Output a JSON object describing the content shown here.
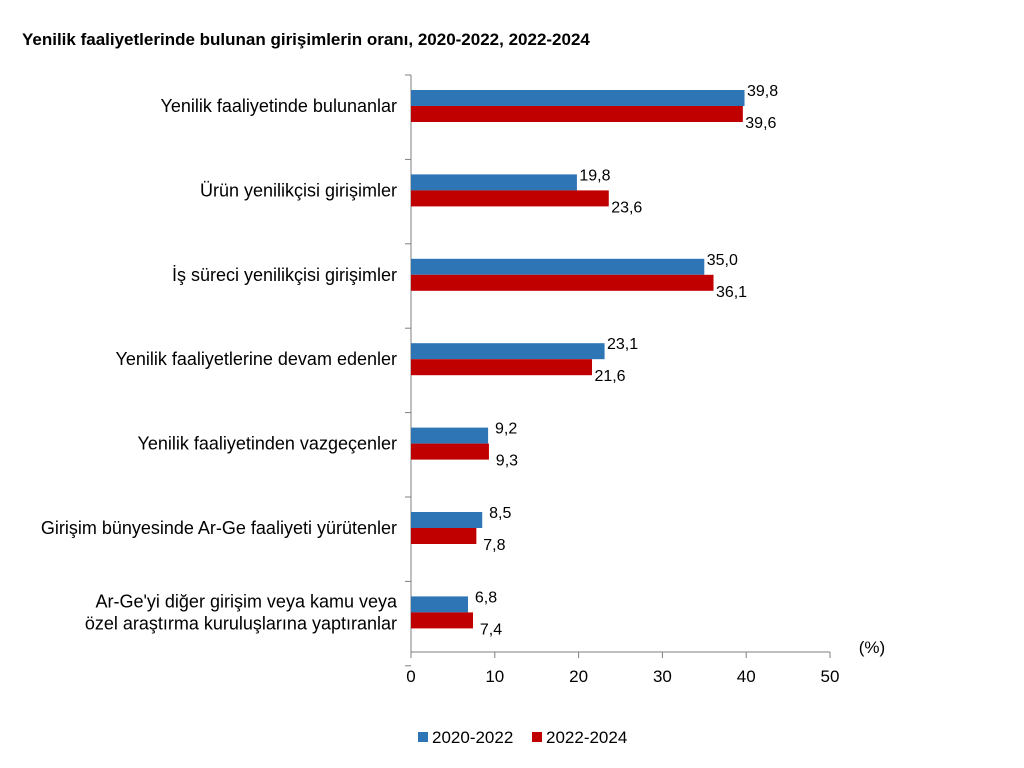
{
  "chart_data": {
    "type": "bar",
    "orientation": "horizontal",
    "title": "Yenilik faaliyetlerinde bulunan girişimlerin oranı, 2020-2022, 2022-2024",
    "unit": "(%)",
    "xlim": [
      0,
      50
    ],
    "ticks": [
      0,
      10,
      20,
      30,
      40,
      50
    ],
    "grid": false,
    "legend_position": "bottom",
    "categories": [
      [
        "Yenilik faaliyetinde bulunanlar"
      ],
      [
        "Ürün yenilikçisi girişimler"
      ],
      [
        "İş süreci yenilikçisi girişimler"
      ],
      [
        "Yenilik faaliyetlerine devam edenler"
      ],
      [
        "Yenilik faaliyetinden vazgeçenler"
      ],
      [
        "Girişim bünyesinde Ar-Ge faaliyeti yürütenler"
      ],
      [
        "Ar-Ge'yi diğer girişim veya kamu veya",
        "özel araştırma kuruluşlarına yaptıranlar"
      ]
    ],
    "series": [
      {
        "name": "2020-2022",
        "color": "#2E75B6",
        "values": [
          39.8,
          19.8,
          35.0,
          23.1,
          9.2,
          8.5,
          6.8
        ],
        "labels": [
          "39,8",
          "19,8",
          "35,0",
          "23,1",
          "9,2",
          "8,5",
          "6,8"
        ]
      },
      {
        "name": "2022-2024",
        "color": "#C00000",
        "values": [
          39.6,
          23.6,
          36.1,
          21.6,
          9.3,
          7.8,
          7.4
        ],
        "labels": [
          "39,6",
          "23,6",
          "36,1",
          "21,6",
          "9,3",
          "7,8",
          "7,4"
        ]
      }
    ]
  }
}
